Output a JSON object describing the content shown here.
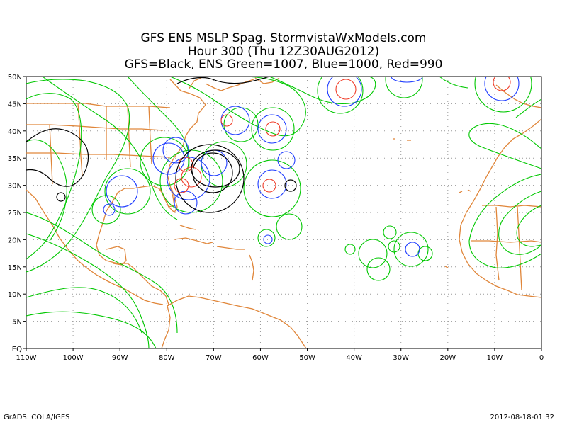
{
  "title": {
    "line1": "GFS ENS MSLP Spag. StormvistaWxModels.com",
    "line2": "Hour 300 (Thu 12Z30AUG2012)",
    "line3": "GFS=Black, ENS Green=1007, Blue=1000, Red=990"
  },
  "axes": {
    "lat_labels": [
      "50N",
      "45N",
      "40N",
      "35N",
      "30N",
      "25N",
      "20N",
      "15N",
      "10N",
      "5N",
      "EQ"
    ],
    "lon_labels": [
      "110W",
      "100W",
      "90W",
      "80W",
      "70W",
      "60W",
      "50W",
      "40W",
      "30W",
      "20W",
      "10W",
      "0"
    ]
  },
  "legend": {
    "gfs": {
      "label": "GFS",
      "color": "#000000"
    },
    "ens_1007": {
      "label": "ENS 1007",
      "color": "#00c800"
    },
    "ens_1000": {
      "label": "1000",
      "color": "#1e3cff"
    },
    "ens_990": {
      "label": "990",
      "color": "#f03c28"
    }
  },
  "colors": {
    "coastline": "#e0863a",
    "grid": "#9a9a9a"
  },
  "footer": {
    "left": "GrADS: COLA/IGES",
    "right": "2012-08-18-01:32"
  }
}
